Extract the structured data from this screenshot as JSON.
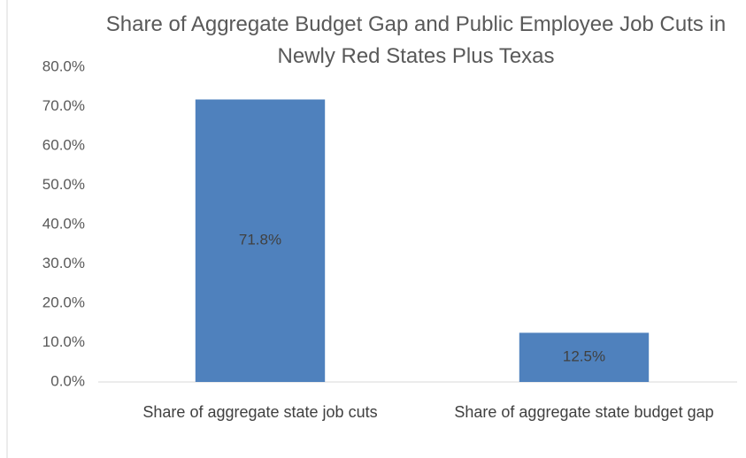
{
  "chart_data": {
    "type": "bar",
    "title": "Share of Aggregate Budget Gap and Public Employee Job Cuts in Newly Red States Plus Texas",
    "categories": [
      "Share of aggregate state job cuts",
      "Share of aggregate state budget gap"
    ],
    "values": [
      71.8,
      12.5
    ],
    "value_labels": [
      "71.8%",
      "12.5%"
    ],
    "color": "#4f81bd",
    "ylim": [
      0,
      80
    ],
    "yticks": [
      {
        "value": 0,
        "label": "0.0%"
      },
      {
        "value": 10,
        "label": "10.0%"
      },
      {
        "value": 20,
        "label": "20.0%"
      },
      {
        "value": 30,
        "label": "30.0%"
      },
      {
        "value": 40,
        "label": "40.0%"
      },
      {
        "value": 50,
        "label": "50.0%"
      },
      {
        "value": 60,
        "label": "60.0%"
      },
      {
        "value": 70,
        "label": "70.0%"
      },
      {
        "value": 80,
        "label": "80.0%"
      }
    ],
    "grid": false
  }
}
